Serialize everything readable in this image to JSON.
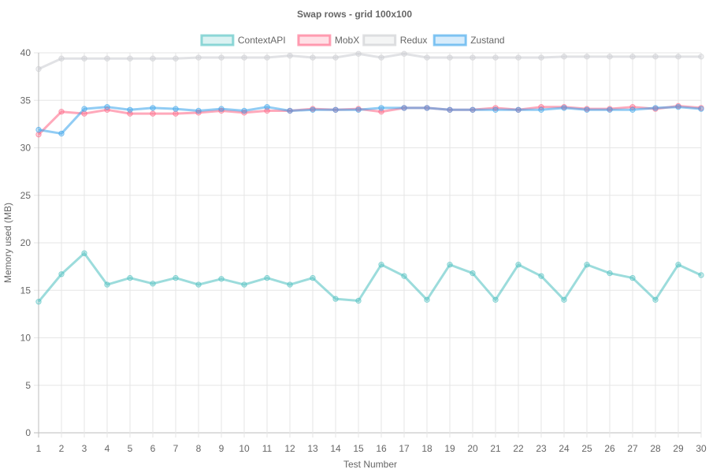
{
  "chart_data": {
    "type": "line",
    "title": "Swap rows - grid 100x100",
    "xlabel": "Test Number",
    "ylabel": "Memory used (MB)",
    "ylim": [
      0,
      40
    ],
    "y_ticks": [
      0,
      5,
      10,
      15,
      20,
      25,
      30,
      35,
      40
    ],
    "grid": true,
    "legend_position": "top",
    "categories": [
      "1",
      "2",
      "3",
      "4",
      "5",
      "6",
      "7",
      "8",
      "9",
      "10",
      "11",
      "12",
      "13",
      "14",
      "15",
      "16",
      "17",
      "18",
      "19",
      "20",
      "21",
      "22",
      "23",
      "24",
      "25",
      "26",
      "27",
      "28",
      "29",
      "30"
    ],
    "series": [
      {
        "name": "ContextAPI",
        "color": "#4bc0c0",
        "values": [
          13.8,
          16.7,
          18.9,
          15.6,
          16.3,
          15.7,
          16.3,
          15.6,
          16.2,
          15.6,
          16.3,
          15.6,
          16.3,
          14.1,
          13.9,
          17.7,
          16.5,
          14.0,
          17.7,
          16.8,
          14.0,
          17.7,
          16.5,
          14.0,
          17.7,
          16.8,
          16.3,
          14.0,
          17.7,
          16.6
        ]
      },
      {
        "name": "MobX",
        "color": "#ff6384",
        "values": [
          31.4,
          33.8,
          33.6,
          34.0,
          33.6,
          33.6,
          33.6,
          33.7,
          33.9,
          33.7,
          33.9,
          33.9,
          34.1,
          34.0,
          34.1,
          33.8,
          34.2,
          34.2,
          34.0,
          34.0,
          34.2,
          34.0,
          34.3,
          34.3,
          34.1,
          34.1,
          34.3,
          34.1,
          34.4,
          34.2
        ]
      },
      {
        "name": "Redux",
        "color": "#c9cbcf",
        "values": [
          38.3,
          39.4,
          39.4,
          39.4,
          39.4,
          39.4,
          39.4,
          39.5,
          39.5,
          39.5,
          39.5,
          39.7,
          39.5,
          39.5,
          39.9,
          39.5,
          39.9,
          39.5,
          39.5,
          39.5,
          39.5,
          39.5,
          39.5,
          39.6,
          39.6,
          39.6,
          39.6,
          39.6,
          39.6,
          39.6
        ]
      },
      {
        "name": "Zustand",
        "color": "#36a2eb",
        "values": [
          31.9,
          31.5,
          34.1,
          34.3,
          34.0,
          34.2,
          34.1,
          33.9,
          34.1,
          33.9,
          34.3,
          33.9,
          34.0,
          34.0,
          34.0,
          34.2,
          34.2,
          34.2,
          34.0,
          34.0,
          34.0,
          34.0,
          34.0,
          34.2,
          34.0,
          34.0,
          34.0,
          34.2,
          34.3,
          34.1
        ]
      }
    ]
  }
}
